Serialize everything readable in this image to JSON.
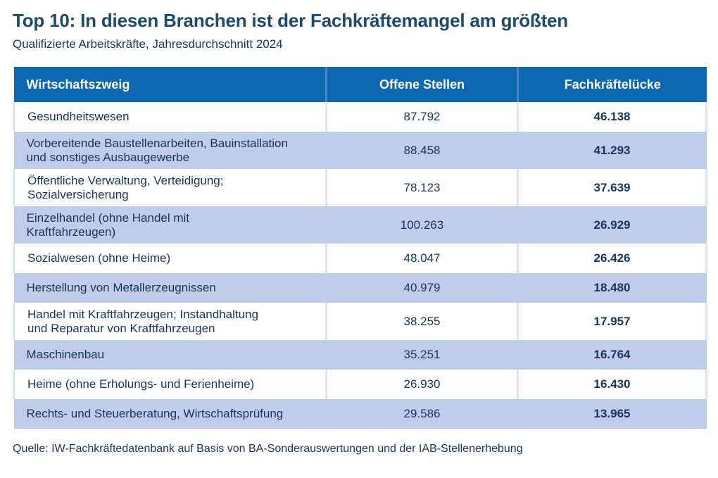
{
  "header": {
    "title": "Top 10: In diesen Branchen ist der Fachkräftemangel am größten",
    "subtitle": "Qualifizierte Arbeitskräfte, Jahresdurchschnitt 2024"
  },
  "table": {
    "columns": [
      "Wirtschaftszweig",
      "Offene Stellen",
      "Fachkräftelücke"
    ],
    "rows": [
      {
        "branche": "Gesundheitswesen",
        "offene_stellen": "87.792",
        "fachkraefteluecke": "46.138"
      },
      {
        "branche": "Vorbereitende Baustellenarbeiten, Bauinstallation\nund sonstiges Ausbaugewerbe",
        "offene_stellen": "88.458",
        "fachkraefteluecke": "41.293"
      },
      {
        "branche": "Öffentliche Verwaltung, Verteidigung;\nSozialversicherung",
        "offene_stellen": "78.123",
        "fachkraefteluecke": "37.639"
      },
      {
        "branche": "Einzelhandel (ohne Handel mit\nKraftfahrzeugen)",
        "offene_stellen": "100.263",
        "fachkraefteluecke": "26.929"
      },
      {
        "branche": "Sozialwesen (ohne Heime)",
        "offene_stellen": "48.047",
        "fachkraefteluecke": "26.426"
      },
      {
        "branche": "Herstellung von Metallerzeugnissen",
        "offene_stellen": "40.979",
        "fachkraefteluecke": "18.480"
      },
      {
        "branche": "Handel mit Kraftfahrzeugen; Instandhaltung\nund Reparatur von Kraftfahrzeugen",
        "offene_stellen": "38.255",
        "fachkraefteluecke": "17.957"
      },
      {
        "branche": "Maschinenbau",
        "offene_stellen": "35.251",
        "fachkraefteluecke": "16.764"
      },
      {
        "branche": "Heime (ohne Erholungs- und Ferienheime)",
        "offene_stellen": "26.930",
        "fachkraefteluecke": "16.430"
      },
      {
        "branche": "Rechts- und Steuerberatung, Wirtschaftsprüfung",
        "offene_stellen": "29.586",
        "fachkraefteluecke": "13.965"
      }
    ]
  },
  "footer": {
    "source": "Quelle: IW-Fachkräftedatenbank auf Basis von BA-Sonderauswertungen und der IAB-Stellenerhebung"
  },
  "colors": {
    "header_bg": "#0d68b1",
    "row_alt_bg": "#bfcdea",
    "header_divider": "#4e82c0",
    "white_row_divider": "#dce5f5",
    "title_text": "#1a4a70",
    "body_text": "#16365f",
    "header_text": "#ffffff"
  },
  "chart_data": {
    "type": "table",
    "title": "Top 10: In diesen Branchen ist der Fachkräftemangel am größten",
    "subtitle": "Qualifizierte Arbeitskräfte, Jahresdurchschnitt 2024",
    "columns": [
      "Wirtschaftszweig",
      "Offene Stellen",
      "Fachkräftelücke"
    ],
    "rows": [
      [
        "Gesundheitswesen",
        87792,
        46138
      ],
      [
        "Vorbereitende Baustellenarbeiten, Bauinstallation und sonstiges Ausbaugewerbe",
        88458,
        41293
      ],
      [
        "Öffentliche Verwaltung, Verteidigung; Sozialversicherung",
        78123,
        37639
      ],
      [
        "Einzelhandel (ohne Handel mit Kraftfahrzeugen)",
        100263,
        26929
      ],
      [
        "Sozialwesen (ohne Heime)",
        48047,
        26426
      ],
      [
        "Herstellung von Metallerzeugnissen",
        40979,
        18480
      ],
      [
        "Handel mit Kraftfahrzeugen; Instandhaltung und Reparatur von Kraftfahrzeugen",
        38255,
        17957
      ],
      [
        "Maschinenbau",
        35251,
        16764
      ],
      [
        "Heime (ohne Erholungs- und Ferienheime)",
        26930,
        16430
      ],
      [
        "Rechts- und Steuerberatung, Wirtschaftsprüfung",
        29586,
        13965
      ]
    ],
    "number_format": "de-DE thousands separator (.)",
    "source": "Quelle: IW-Fachkräftedatenbank auf Basis von BA-Sonderauswertungen und der IAB-Stellenerhebung"
  }
}
